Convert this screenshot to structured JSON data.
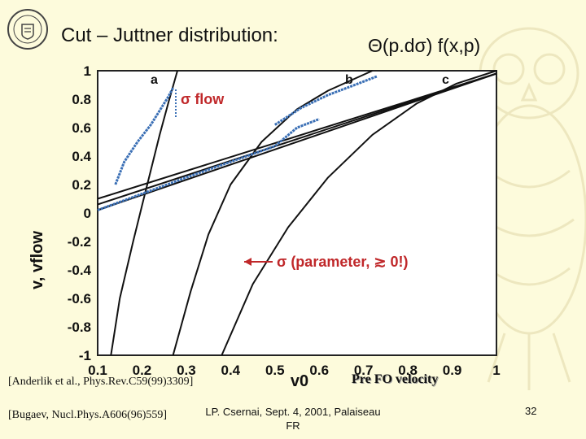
{
  "slide": {
    "title": "Cut – Juttner distribution:",
    "formula": "Θ(p.dσ) f(x,p)",
    "reference_1": "[Anderlik et al., Phys.Rev.C59(99)3309]",
    "reference_2": "[Bugaev, Nucl.Phys.A606(96)559]",
    "x_caption": "Pre FO velocity",
    "footer": {
      "line1": "LP. Csernai, Sept. 4, 2001, Palaiseau",
      "line2": "FR"
    },
    "page_number": "32",
    "logo_icon": "university-seal-icon",
    "background_icon": "owl-watermark-icon"
  },
  "chart_data": {
    "type": "line",
    "xlabel": "v0",
    "ylabel": "v, vflow",
    "xlim": [
      0.1,
      1
    ],
    "ylim": [
      -1,
      1
    ],
    "x_ticks": [
      "0.1",
      "0.2",
      "0.3",
      "0.4",
      "0.5",
      "0.6",
      "0.7",
      "0.8",
      "0.9",
      "1"
    ],
    "y_ticks": [
      "-1",
      "-0.8",
      "-0.6",
      "-0.4",
      "-0.2",
      "0",
      "0.2",
      "0.4",
      "0.6",
      "0.8",
      "1"
    ],
    "curve_labels": [
      "a",
      "b",
      "c"
    ],
    "annotations": [
      "σ flow",
      "σ (parameter, ≳ 0!)"
    ],
    "annotation_color": "#c0282a",
    "series": [
      {
        "id": "a",
        "color": "#111111",
        "points": [
          [
            0.13,
            -1
          ],
          [
            0.15,
            -0.6
          ],
          [
            0.18,
            -0.2
          ],
          [
            0.2,
            0.05
          ],
          [
            0.22,
            0.3
          ],
          [
            0.24,
            0.55
          ],
          [
            0.26,
            0.78
          ],
          [
            0.28,
            1
          ]
        ]
      },
      {
        "id": "b",
        "color": "#111111",
        "points": [
          [
            0.27,
            -1
          ],
          [
            0.31,
            -0.55
          ],
          [
            0.35,
            -0.15
          ],
          [
            0.4,
            0.2
          ],
          [
            0.47,
            0.5
          ],
          [
            0.55,
            0.73
          ],
          [
            0.62,
            0.86
          ],
          [
            0.72,
            1
          ]
        ]
      },
      {
        "id": "c",
        "color": "#111111",
        "points": [
          [
            0.38,
            -1
          ],
          [
            0.45,
            -0.5
          ],
          [
            0.53,
            -0.1
          ],
          [
            0.62,
            0.25
          ],
          [
            0.72,
            0.55
          ],
          [
            0.82,
            0.77
          ],
          [
            0.91,
            0.91
          ],
          [
            1,
            1
          ]
        ]
      },
      {
        "id": "line-1",
        "color": "#111111",
        "points": [
          [
            0.1,
            0.02
          ],
          [
            1,
            0.98
          ]
        ]
      },
      {
        "id": "line-2",
        "color": "#111111",
        "points": [
          [
            0.1,
            0.06
          ],
          [
            1,
            0.98
          ]
        ]
      },
      {
        "id": "line-3",
        "color": "#111111",
        "points": [
          [
            0.1,
            0.1
          ],
          [
            1,
            0.98
          ]
        ]
      },
      {
        "id": "flow-a",
        "color": "#3a6fb5",
        "points": [
          [
            0.14,
            0.2
          ],
          [
            0.16,
            0.36
          ],
          [
            0.19,
            0.5
          ],
          [
            0.22,
            0.62
          ],
          [
            0.24,
            0.72
          ],
          [
            0.26,
            0.82
          ],
          [
            0.27,
            0.88
          ]
        ]
      },
      {
        "id": "flow-b",
        "color": "#3a6fb5",
        "points": [
          [
            0.5,
            0.62
          ],
          [
            0.56,
            0.74
          ],
          [
            0.62,
            0.83
          ],
          [
            0.68,
            0.9
          ],
          [
            0.73,
            0.96
          ]
        ]
      },
      {
        "id": "flow-mid",
        "color": "#3a6fb5",
        "points": [
          [
            0.1,
            0.02
          ],
          [
            0.3,
            0.25
          ],
          [
            0.5,
            0.47
          ],
          [
            0.55,
            0.6
          ],
          [
            0.6,
            0.66
          ]
        ]
      }
    ]
  }
}
